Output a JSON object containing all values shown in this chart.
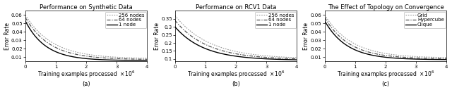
{
  "panel1": {
    "title": "Performance on Synthetic Data",
    "ylabel": "Error Rate",
    "xlabel": "Training examples processed",
    "ylim": [
      0.005,
      0.065
    ],
    "xlim": [
      0,
      4000000.0
    ],
    "xticks": [
      0,
      1000000.0,
      2000000.0,
      3000000.0,
      4000000.0
    ],
    "yticks": [
      0.01,
      0.02,
      0.03,
      0.04,
      0.05,
      0.06
    ],
    "curves": [
      {
        "label": "256 nodes",
        "style": "dotted",
        "color": "#999999",
        "start": 0.06,
        "end": 0.0082,
        "decay": 4.5
      },
      {
        "label": "64 nodes",
        "style": "dashdot",
        "color": "#555555",
        "start": 0.057,
        "end": 0.0072,
        "decay": 5.0
      },
      {
        "label": "1 node",
        "style": "solid",
        "color": "#000000",
        "start": 0.053,
        "end": 0.006,
        "decay": 6.0
      }
    ]
  },
  "panel2": {
    "title": "Performance on RCV1 Data",
    "ylabel": "Error Rate",
    "xlabel": "Training examples processed",
    "ylim": [
      0.085,
      0.4
    ],
    "xlim": [
      0,
      4000000.0
    ],
    "xticks": [
      0,
      1000000.0,
      2000000.0,
      3000000.0,
      4000000.0
    ],
    "yticks": [
      0.1,
      0.15,
      0.2,
      0.25,
      0.3,
      0.35
    ],
    "curves": [
      {
        "label": "256 nodes",
        "style": "dotted",
        "color": "#999999",
        "start": 0.37,
        "end": 0.1,
        "decay": 3.5
      },
      {
        "label": "64 nodes",
        "style": "dashdot",
        "color": "#555555",
        "start": 0.34,
        "end": 0.096,
        "decay": 3.8
      },
      {
        "label": "1 node",
        "style": "solid",
        "color": "#000000",
        "start": 0.3,
        "end": 0.092,
        "decay": 4.2
      }
    ]
  },
  "panel3": {
    "title": "The Effect of Topology on Convergence",
    "ylabel": "Error Rate",
    "xlabel": "Training examples processed",
    "ylim": [
      0.005,
      0.065
    ],
    "xlim": [
      0,
      4000000.0
    ],
    "xticks": [
      0,
      1000000.0,
      2000000.0,
      3000000.0,
      4000000.0
    ],
    "yticks": [
      0.01,
      0.02,
      0.03,
      0.04,
      0.05,
      0.06
    ],
    "curves": [
      {
        "label": "Grid",
        "style": "dotted",
        "color": "#999999",
        "start": 0.06,
        "end": 0.009,
        "decay": 4.5
      },
      {
        "label": "Hypercube",
        "style": "dashdot",
        "color": "#555555",
        "start": 0.057,
        "end": 0.008,
        "decay": 5.0
      },
      {
        "label": "Clique",
        "style": "solid",
        "color": "#000000",
        "start": 0.053,
        "end": 0.007,
        "decay": 5.5
      }
    ]
  },
  "sublabels": [
    "(a)",
    "(b)",
    "(c)"
  ],
  "figure_bgcolor": "#ffffff",
  "font_size": 6.0,
  "title_font_size": 6.0,
  "legend_font_size": 5.0,
  "tick_font_size": 5.0,
  "label_font_size": 5.5
}
